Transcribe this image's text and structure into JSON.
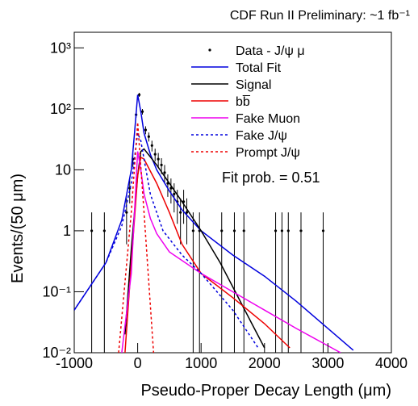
{
  "chart_data": {
    "type": "line",
    "title": "CDF Run II Preliminary: ~1 fb⁻¹",
    "x_label": "Pseudo-Proper Decay Length (μm)",
    "y_label": "Events/(50 μm)",
    "annotation": "Fit prob. = 0.51",
    "log_y": true,
    "legend": "top-right",
    "xlim": [
      -1000,
      4000
    ],
    "ylim": [
      0.01,
      1800
    ],
    "xticks": [
      -1000,
      0,
      1000,
      2000,
      3000,
      4000
    ],
    "yticks": [
      {
        "value": 0.01,
        "label": "10⁻²"
      },
      {
        "value": 0.1,
        "label": "10⁻¹"
      },
      1,
      10,
      {
        "value": 100,
        "label": "10²"
      },
      {
        "value": 1000,
        "label": "10³"
      }
    ],
    "series": [
      {
        "name": "Data - J/ψ μ",
        "color": "#000000",
        "style": "points",
        "x": [
          -725,
          -525,
          -175,
          -125,
          -75,
          -25,
          25,
          75,
          125,
          175,
          225,
          275,
          325,
          375,
          425,
          475,
          525,
          575,
          625,
          675,
          725,
          775,
          875,
          975,
          1325,
          1525,
          1675,
          2175,
          2275,
          2375,
          2575,
          2925
        ],
        "values": [
          1,
          1,
          2,
          5,
          15,
          80,
          170,
          90,
          45,
          35,
          25,
          18,
          15,
          12,
          9,
          6,
          5,
          4,
          3,
          2,
          3,
          2,
          1,
          1,
          1,
          1,
          1,
          1,
          1,
          1,
          1,
          1
        ],
        "errors": [
          1,
          1,
          1.4,
          2.2,
          3.9,
          8.9,
          13,
          9.5,
          6.7,
          5.9,
          5,
          4.2,
          3.9,
          3.5,
          3,
          2.4,
          2.2,
          2,
          1.7,
          1.4,
          1.7,
          1.4,
          1,
          1,
          1,
          1,
          1,
          1,
          1,
          1,
          1,
          1
        ]
      },
      {
        "name": "Total Fit",
        "color": "#0000dd",
        "style": "solid",
        "x": [
          -1000,
          -500,
          -250,
          -100,
          -50,
          0,
          50,
          100,
          200,
          300,
          500,
          700,
          1000,
          1500,
          2000,
          2500,
          3000,
          3400
        ],
        "values": [
          0.05,
          0.3,
          1.5,
          10,
          40,
          170,
          90,
          40,
          18,
          10,
          4.5,
          2.2,
          1,
          0.4,
          0.18,
          0.07,
          0.025,
          0.011
        ]
      },
      {
        "name": "Signal",
        "color": "#000000",
        "style": "solid",
        "x": [
          -200,
          -100,
          0,
          50,
          100,
          300,
          500,
          700,
          1000,
          1300,
          1500,
          1800,
          2000
        ],
        "values": [
          0.02,
          0.5,
          8,
          20,
          22,
          12,
          6,
          3,
          1,
          0.3,
          0.12,
          0.03,
          0.012
        ]
      },
      {
        "name": "bb̅",
        "color": "#ee0000",
        "style": "solid",
        "x": [
          -200,
          -100,
          0,
          50,
          100,
          300,
          500,
          700,
          1000,
          1500,
          2000,
          2400
        ],
        "values": [
          0.01,
          0.3,
          8,
          16,
          15,
          6,
          2,
          0.6,
          0.2,
          0.08,
          0.03,
          0.012
        ]
      },
      {
        "name": "Fake Muon",
        "color": "#ee00ee",
        "style": "solid",
        "x": [
          -250,
          -100,
          0,
          50,
          100,
          200,
          300,
          500,
          1000,
          1500,
          2000,
          2500,
          3000,
          3200
        ],
        "values": [
          0.01,
          0.2,
          20,
          10,
          4,
          1.6,
          0.9,
          0.45,
          0.2,
          0.1,
          0.05,
          0.025,
          0.013,
          0.01
        ]
      },
      {
        "name": "Fake J/ψ",
        "color": "#0000dd",
        "style": "dashed",
        "x": [
          -1000,
          -500,
          -250,
          -100,
          0,
          50,
          100,
          200,
          400,
          700,
          1000,
          1500,
          1900
        ],
        "values": [
          0.05,
          0.3,
          1.2,
          6,
          40,
          30,
          15,
          4,
          1,
          0.4,
          0.2,
          0.05,
          0.012
        ]
      },
      {
        "name": "Prompt J/ψ",
        "color": "#ee0000",
        "style": "dashed",
        "x": [
          -300,
          -100,
          0,
          100,
          250
        ],
        "values": [
          0.01,
          2,
          60,
          2,
          0.01
        ]
      }
    ]
  }
}
